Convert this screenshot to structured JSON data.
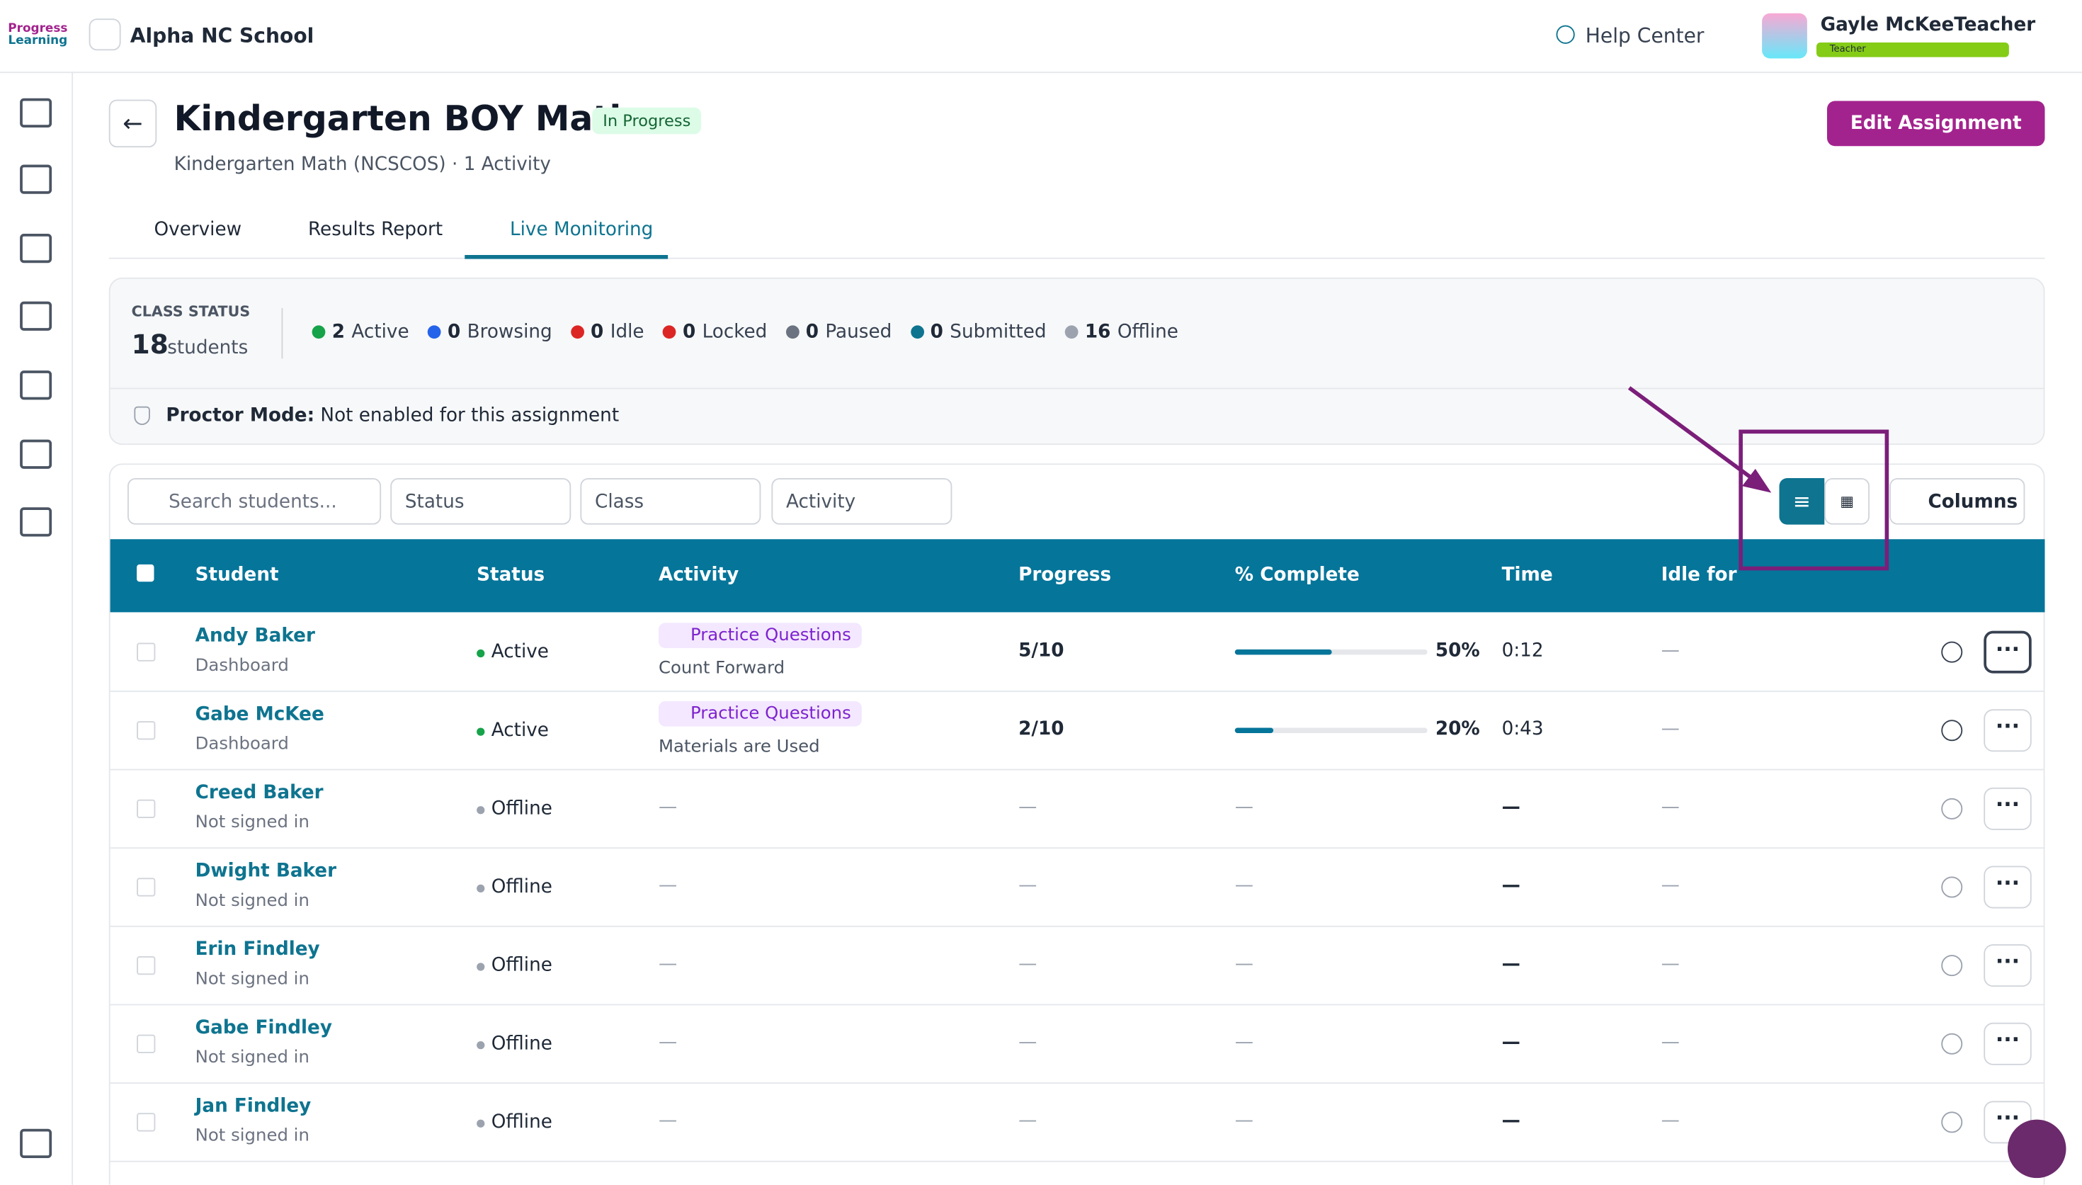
{
  "topbar": {
    "logo": [
      "Progress",
      "Learning"
    ],
    "school": "Alpha NC School",
    "help": "Help Center",
    "user": "Gayle McKeeTeacher",
    "role": "Teacher"
  },
  "header": {
    "title": "Kindergarten BOY Math",
    "badge": "In Progress",
    "subtitle": "Kindergarten Math (NCSCOS)",
    "activities": "1 Activity",
    "edit": "Edit Assignment"
  },
  "tabs": [
    "Overview",
    "Results Report",
    "Live Monitoring"
  ],
  "class_status": {
    "label": "CLASS STATUS",
    "count": 18,
    "unit": "students",
    "statuses": [
      {
        "count": 2,
        "label": "Active",
        "color": "#16a34a"
      },
      {
        "count": 0,
        "label": "Browsing",
        "color": "#2563eb"
      },
      {
        "count": 0,
        "label": "Idle",
        "color": "#dc2626"
      },
      {
        "count": 0,
        "label": "Locked",
        "color": "#dc2626"
      },
      {
        "count": 0,
        "label": "Paused",
        "color": "#6b7280"
      },
      {
        "count": 0,
        "label": "Submitted",
        "color": "#0e7490"
      },
      {
        "count": 16,
        "label": "Offline",
        "color": "#9ca3af"
      }
    ],
    "proctor_label": "Proctor Mode:",
    "proctor_text": "Not enabled for this assignment"
  },
  "filters": {
    "search": "Search students...",
    "selects": [
      "Status",
      "Class",
      "Activity"
    ],
    "columns": "Columns"
  },
  "table": {
    "headers": [
      "Student",
      "Status",
      "Activity",
      "Progress",
      "% Complete",
      "Time",
      "Idle for"
    ],
    "rows": [
      {
        "name": "Andy Baker",
        "sub": "Dashboard",
        "status": "Active",
        "tag": "Practice Questions",
        "activity": "Count Forward",
        "progress": "5/10",
        "complete": {
          "value": 50,
          "label": "50%"
        },
        "time": "0:12",
        "idle": "—"
      },
      {
        "name": "Gabe McKee",
        "sub": "Dashboard",
        "status": "Active",
        "tag": "Practice Questions",
        "activity": "Materials are Used",
        "progress": "2/10",
        "complete": {
          "value": 20,
          "label": "20%"
        },
        "time": "0:43",
        "idle": "—"
      },
      {
        "name": "Creed Baker",
        "sub": "Not signed in",
        "status": "Offline",
        "activity": "—",
        "progress": "—",
        "complete": "—",
        "time": "—",
        "idle": "—"
      },
      {
        "name": "Dwight Baker",
        "sub": "Not signed in",
        "status": "Offline",
        "activity": "—",
        "progress": "—",
        "complete": "—",
        "time": "—",
        "idle": "—"
      },
      {
        "name": "Erin Findley",
        "sub": "Not signed in",
        "status": "Offline",
        "activity": "—",
        "progress": "—",
        "complete": "—",
        "time": "—",
        "idle": "—"
      },
      {
        "name": "Gabe Findley",
        "sub": "Not signed in",
        "status": "Offline",
        "activity": "—",
        "progress": "—",
        "complete": "—",
        "time": "—",
        "idle": "—"
      },
      {
        "name": "Jan Findley",
        "sub": "Not signed in",
        "status": "Offline",
        "activity": "—",
        "progress": "—",
        "complete": "—",
        "time": "—",
        "idle": "—"
      }
    ]
  }
}
